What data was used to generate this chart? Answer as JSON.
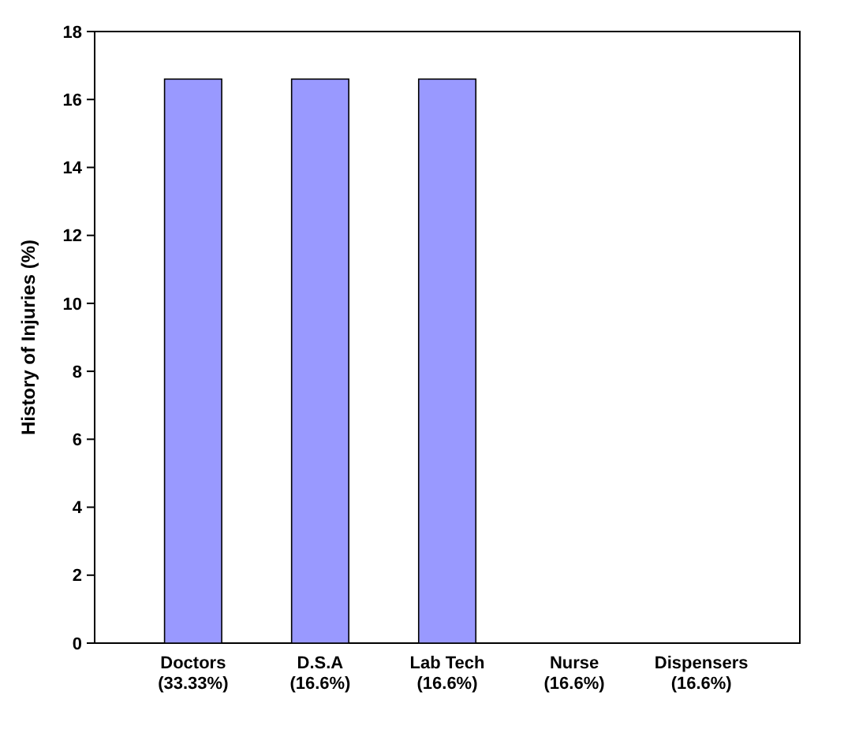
{
  "chart_data": {
    "type": "bar",
    "ylabel": "History of Injuries (%)",
    "categories": [
      "Doctors (33.33%)",
      "D.S.A (16.6%)",
      "Lab Tech (16.6%)",
      "Nurse (16.6%)",
      "Dispensers (16.6%)"
    ],
    "values": [
      16.6,
      16.6,
      16.6,
      0,
      0
    ],
    "color": "#9999ff",
    "ylim": [
      0,
      18
    ],
    "yticks": [
      0,
      2,
      4,
      6,
      8,
      10,
      12,
      14,
      16,
      18
    ],
    "grid": false
  }
}
